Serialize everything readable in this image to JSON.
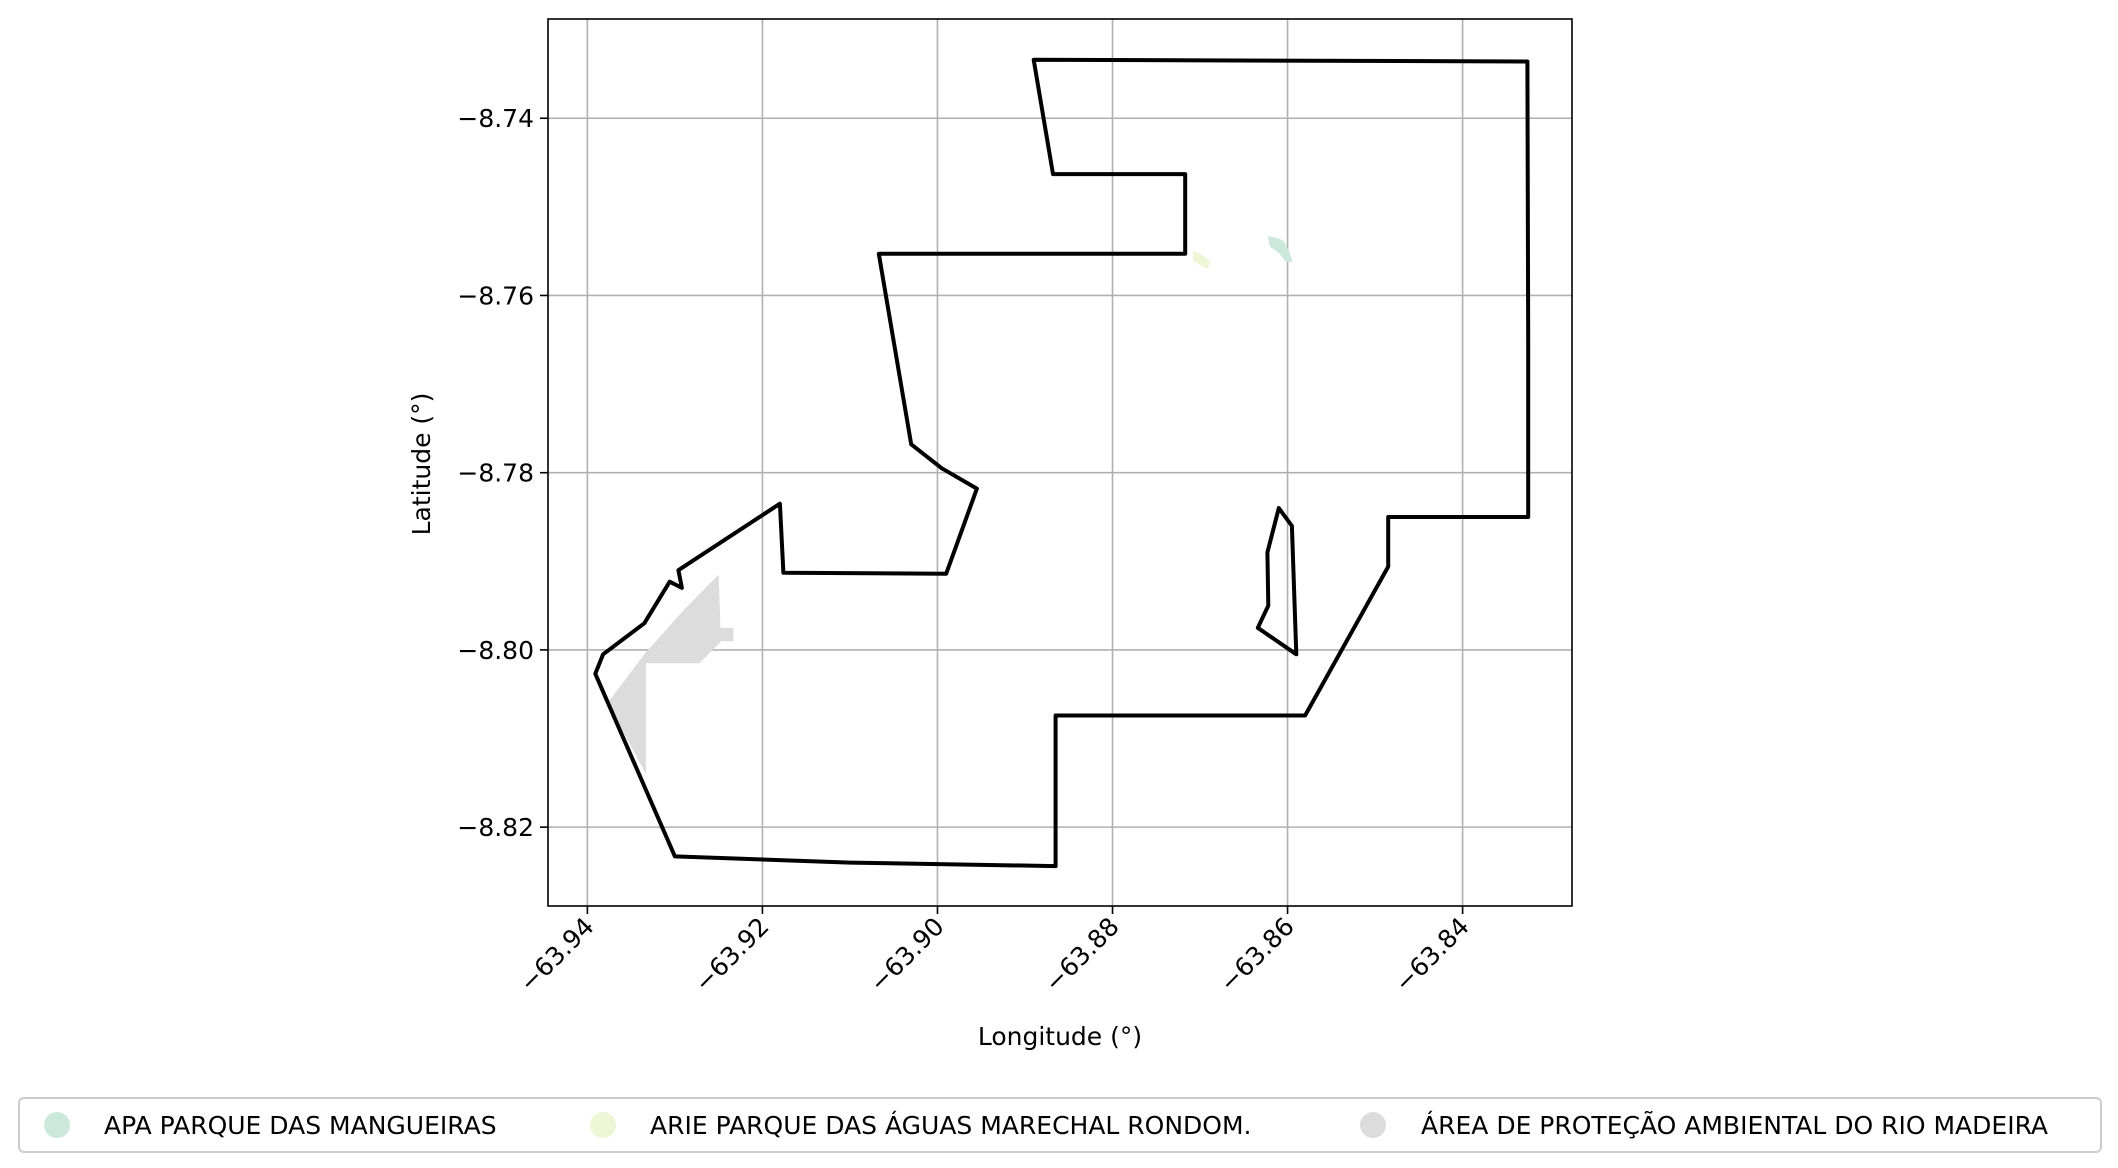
{
  "map": {
    "xlabel": "Longitude (°)",
    "ylabel": "Latitude (°)",
    "xlim": [
      -63.9445,
      -63.8275
    ],
    "ylim": [
      -8.8289,
      -8.7288
    ],
    "x_ticks": [
      -63.94,
      -63.92,
      -63.9,
      -63.88,
      -63.86,
      -63.84
    ],
    "x_tick_labels": [
      "−63.94",
      "−63.92",
      "−63.90",
      "−63.88",
      "−63.86",
      "−63.84"
    ],
    "y_ticks": [
      -8.74,
      -8.76,
      -8.78,
      -8.8,
      -8.82
    ],
    "y_tick_labels": [
      "−8.74",
      "−8.76",
      "−8.78",
      "−8.80",
      "−8.82"
    ],
    "grid": true,
    "boundary_color": "#000000",
    "boundary": [
      [
        [
          -63.889,
          -8.7334
        ],
        [
          -63.8326,
          -8.7336
        ],
        [
          -63.8325,
          -8.765
        ],
        [
          -63.8325,
          -8.785
        ],
        [
          -63.8485,
          -8.785
        ],
        [
          -63.8485,
          -8.7906
        ],
        [
          -63.858,
          -8.8074
        ],
        [
          -63.8865,
          -8.8074
        ],
        [
          -63.8865,
          -8.8244
        ],
        [
          -63.91,
          -8.824
        ],
        [
          -63.93,
          -8.8233
        ],
        [
          -63.9391,
          -8.8027
        ],
        [
          -63.9382,
          -8.8005
        ],
        [
          -63.9335,
          -8.797
        ],
        [
          -63.9306,
          -8.7923
        ],
        [
          -63.9292,
          -8.793
        ],
        [
          -63.9296,
          -8.791
        ],
        [
          -63.918,
          -8.7835
        ],
        [
          -63.9176,
          -8.7913
        ],
        [
          -63.899,
          -8.7914
        ],
        [
          -63.8955,
          -8.7818
        ],
        [
          -63.8995,
          -8.7795
        ],
        [
          -63.903,
          -8.7768
        ],
        [
          -63.9067,
          -8.7553
        ],
        [
          -63.8717,
          -8.7553
        ],
        [
          -63.8717,
          -8.7463
        ],
        [
          -63.8868,
          -8.7463
        ],
        [
          -63.889,
          -8.7334
        ]
      ],
      [
        [
          -63.861,
          -8.784
        ],
        [
          -63.8595,
          -8.786
        ],
        [
          -63.859,
          -8.8005
        ],
        [
          -63.8634,
          -8.7975
        ],
        [
          -63.8622,
          -8.795
        ],
        [
          -63.8623,
          -8.789
        ],
        [
          -63.861,
          -8.784
        ]
      ]
    ],
    "areas": [
      {
        "name": "APA PARQUE DAS MANGUEIRAS",
        "color": "#cce8dc",
        "polygons": [
          [
            [
              -63.8623,
              -8.7533
            ],
            [
              -63.8612,
              -8.7535
            ],
            [
              -63.8605,
              -8.7538
            ],
            [
              -63.8598,
              -8.755
            ],
            [
              -63.8594,
              -8.7562
            ],
            [
              -63.8602,
              -8.7562
            ],
            [
              -63.861,
              -8.7552
            ],
            [
              -63.862,
              -8.7545
            ]
          ]
        ]
      },
      {
        "name": "ARIE PARQUE DAS ÁGUAS MARECHAL RONDOM.",
        "color": "#eef6d6",
        "polygons": [
          [
            [
              -63.8708,
              -8.7549
            ],
            [
              -63.8695,
              -8.7556
            ],
            [
              -63.8688,
              -8.7562
            ],
            [
              -63.8692,
              -8.757
            ],
            [
              -63.87,
              -8.7566
            ],
            [
              -63.8708,
              -8.756
            ]
          ]
        ]
      },
      {
        "name": "ÁREA DE PROTEÇÃO AMBIENTAL DO RIO MADEIRA",
        "color": "#dcdcdc",
        "polygons": [
          [
            [
              -63.925,
              -8.7915
            ],
            [
              -63.9248,
              -8.7975
            ],
            [
              -63.9233,
              -8.7975
            ],
            [
              -63.9233,
              -8.799
            ],
            [
              -63.9247,
              -8.799
            ],
            [
              -63.9272,
              -8.8015
            ],
            [
              -63.9333,
              -8.8015
            ],
            [
              -63.9333,
              -8.814
            ],
            [
              -63.9377,
              -8.806
            ],
            [
              -63.9335,
              -8.8005
            ],
            [
              -63.929,
              -8.7955
            ]
          ]
        ]
      }
    ]
  }
}
